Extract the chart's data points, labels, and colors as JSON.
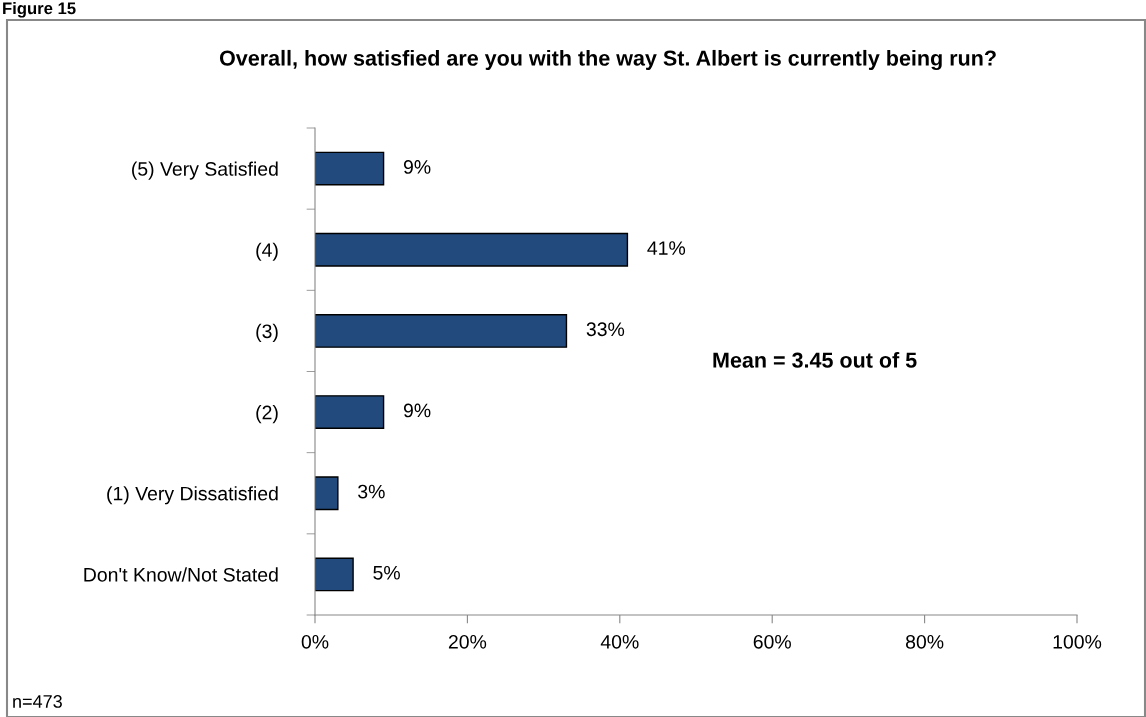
{
  "chart_data": {
    "type": "bar",
    "orientation": "horizontal",
    "title": "Overall, how satisfied are you with the way St. Albert is currently being run?",
    "categories": [
      "(5) Very Satisfied",
      "(4)",
      "(3)",
      "(2)",
      "(1) Very Dissatisfied",
      "Don't Know/Not Stated"
    ],
    "values": [
      9,
      41,
      33,
      9,
      3,
      5
    ],
    "value_labels": [
      "9%",
      "41%",
      "33%",
      "9%",
      "3%",
      "5%"
    ],
    "color": "#234a7c",
    "xlim": [
      0,
      100
    ],
    "xticks": [
      {
        "value": 0,
        "label": "0%"
      },
      {
        "value": 20,
        "label": "20%"
      },
      {
        "value": 40,
        "label": "40%"
      },
      {
        "value": 60,
        "label": "60%"
      },
      {
        "value": 80,
        "label": "80%"
      },
      {
        "value": 100,
        "label": "100%"
      }
    ],
    "grid": false,
    "legend": false,
    "annotations": [
      "Figure 15",
      "Mean = 3.45 out of 5",
      "n=473"
    ]
  }
}
